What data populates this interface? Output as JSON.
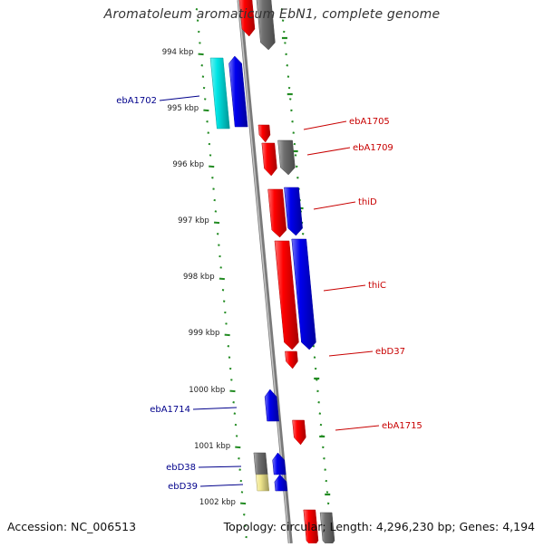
{
  "title": "Aromatoleum aromaticum EbN1, complete genome",
  "footer": {
    "accession": "Accession: NC_006513",
    "topology": "Topology: circular; Length: 4,296,230 bp; Genes: 4,194"
  },
  "scale_labels": [
    "994 kbp",
    "995 kbp",
    "996 kbp",
    "997 kbp",
    "998 kbp",
    "999 kbp",
    "1000 kbp",
    "1001 kbp",
    "1002 kbp"
  ],
  "gene_labels_left": [
    "ebA1702",
    "ebA1714",
    "ebD38",
    "ebD39"
  ],
  "gene_labels_right": [
    "ebA1705",
    "ebA1709",
    "thiD",
    "thiC",
    "ebD37",
    "ebA1715"
  ],
  "colors": {
    "red": "#ff0000",
    "blue": "#0000ee",
    "gray": "#707070",
    "cyan": "#00e5e5",
    "khaki": "#f0e68c",
    "tick": "#228b22",
    "left_label": "#00008b",
    "right_label": "#c80000",
    "backbone": "#8c8c8c"
  }
}
